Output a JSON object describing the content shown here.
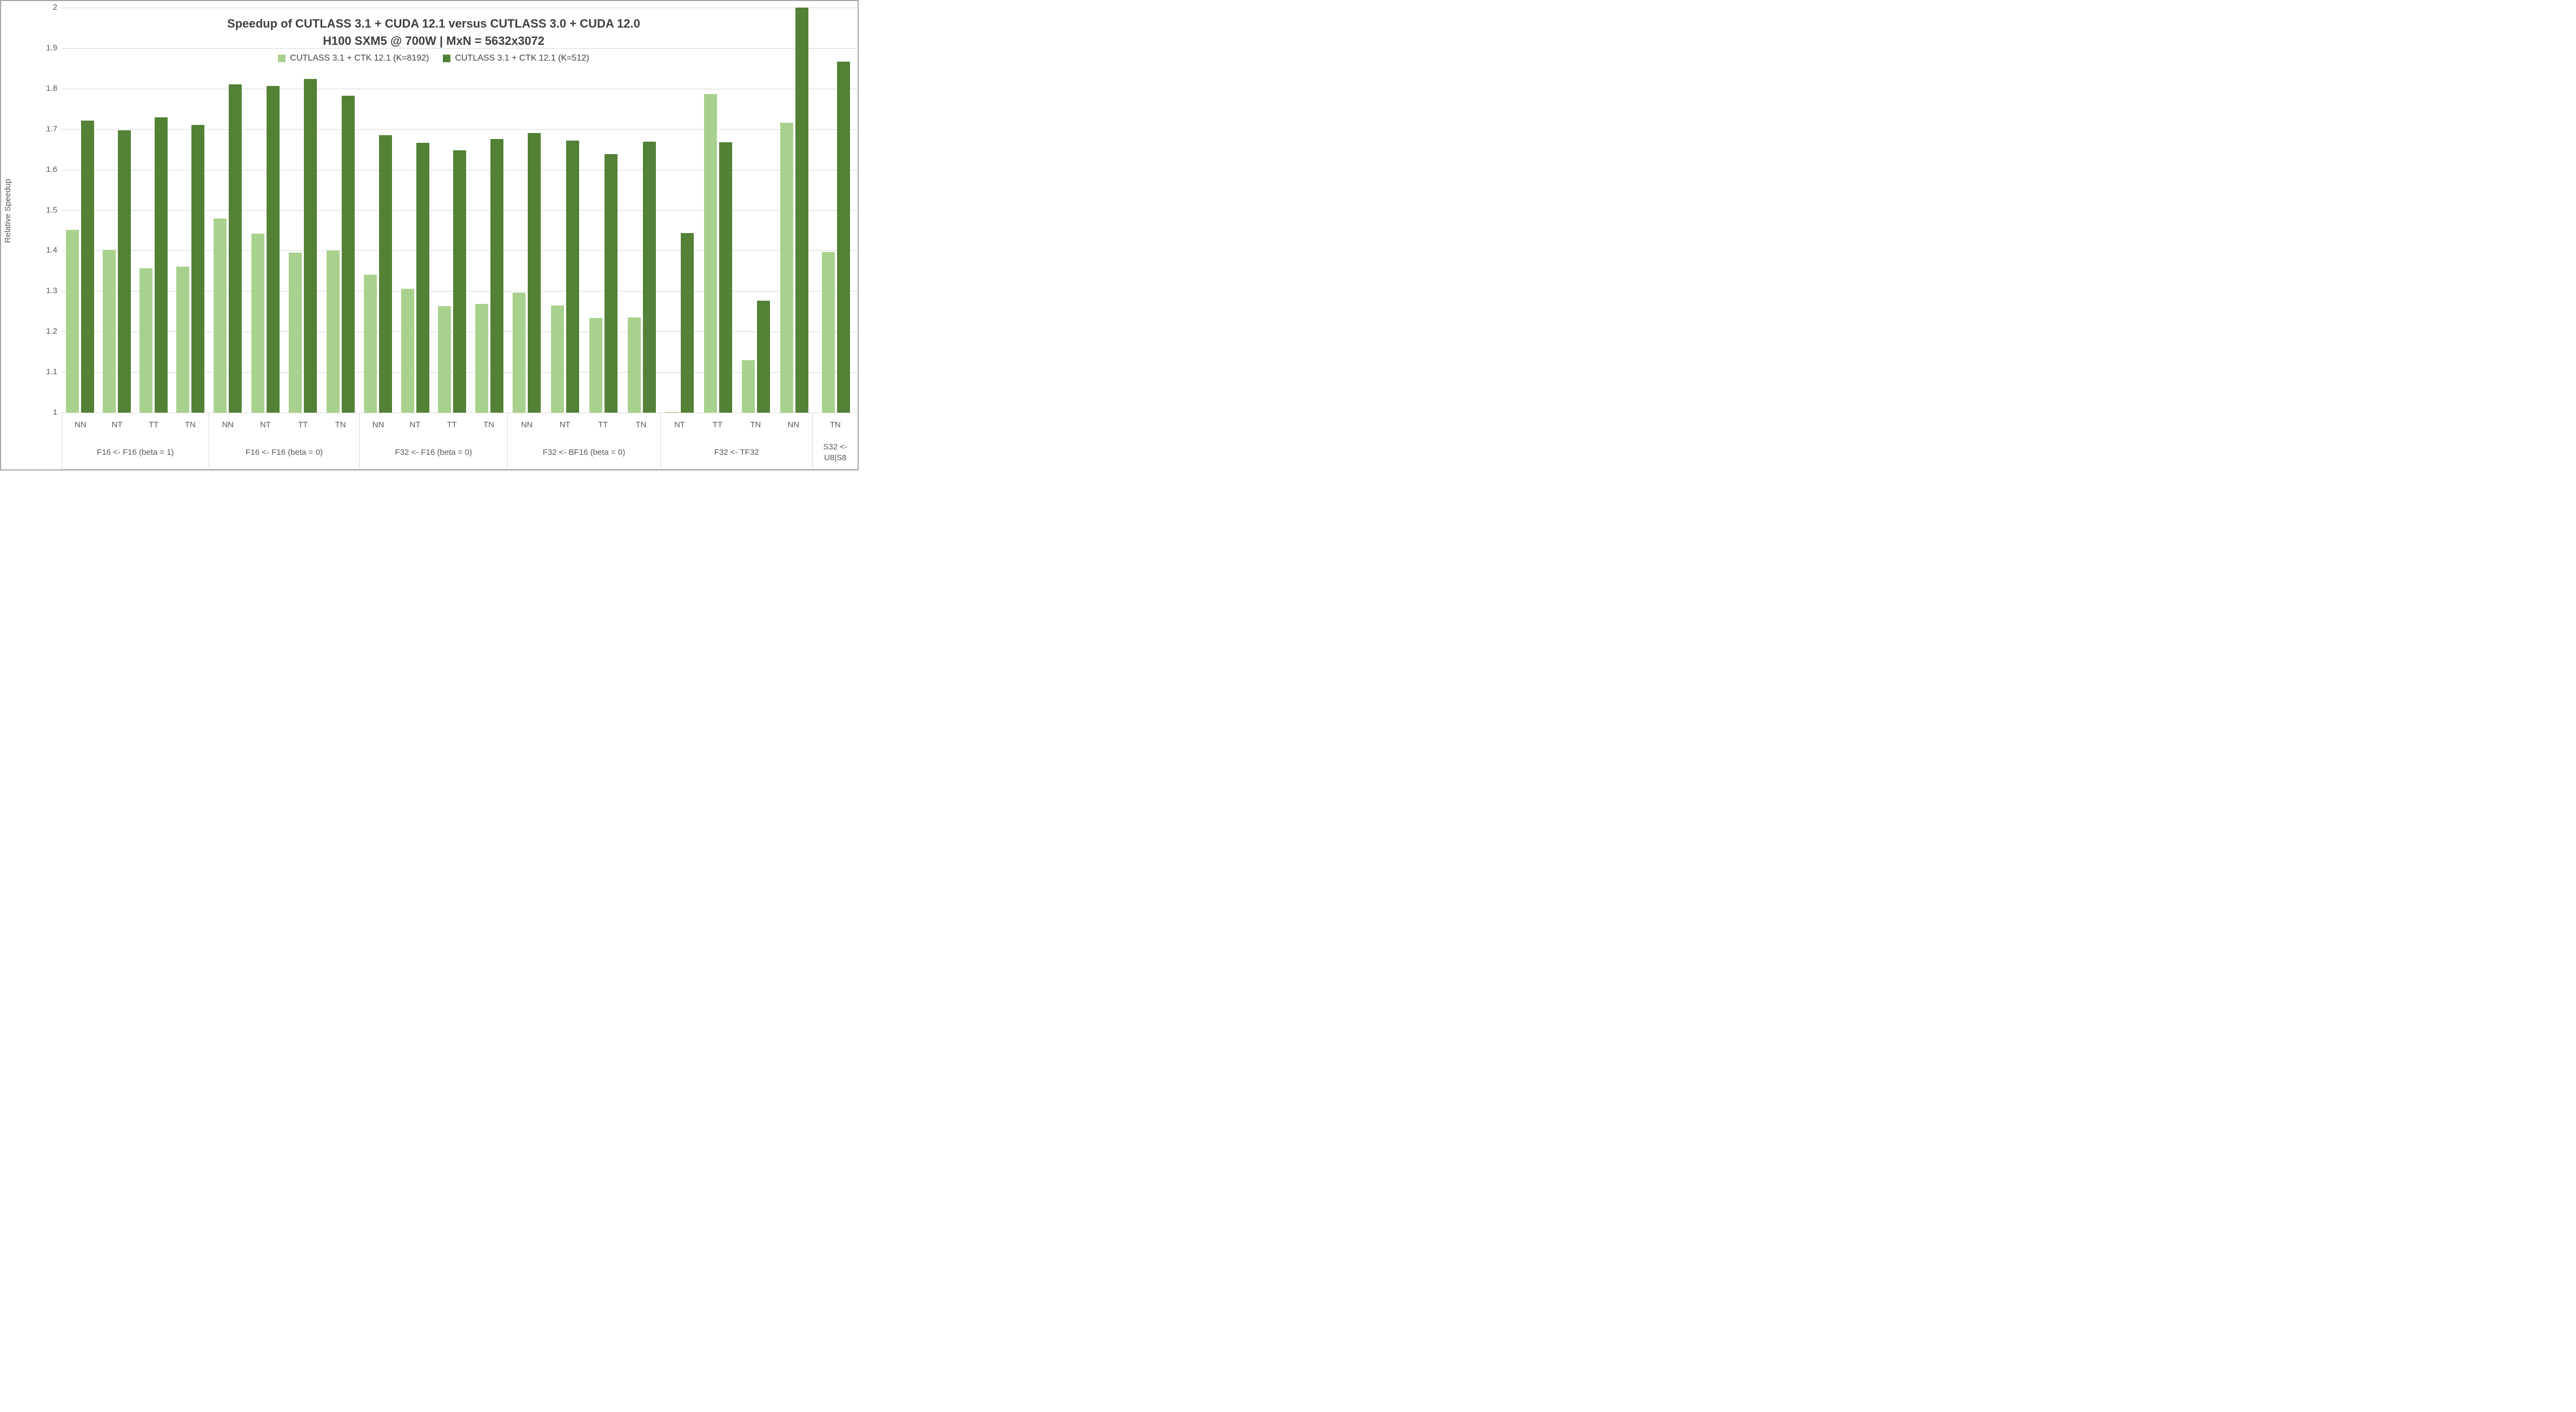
{
  "frame": {
    "background": "#ffffff",
    "border_color": "#a6a6a6"
  },
  "axis_style": {
    "text_color": "#595959",
    "title_color": "#404040",
    "gridline_color": "#d9d9d9"
  },
  "chart_data": {
    "type": "bar",
    "title": "Speedup of CUTLASS 3.1 + CUDA 12.1 versus CUTLASS 3.0 + CUDA 12.0",
    "subtitle": "H100 SXM5 @ 700W | MxN = 5632x3072",
    "ylabel": "Relative Speedup",
    "xlabel": "",
    "ylim": [
      1,
      2
    ],
    "grid": true,
    "legend_position": "top-center",
    "ytick_labels": [
      "1",
      "1.1",
      "1.2",
      "1.3",
      "1.4",
      "1.5",
      "1.6",
      "1.7",
      "1.8",
      "1.9",
      "2"
    ],
    "yticks": [
      1,
      1.1,
      1.2,
      1.3,
      1.4,
      1.5,
      1.6,
      1.7,
      1.8,
      1.9,
      2
    ],
    "series": [
      {
        "name": "CUTLASS 3.1 + CTK 12.1 (K=8192)",
        "color": "#A9D18E"
      },
      {
        "name": "CUTLASS 3.1 + CTK 12.1 (K=512)",
        "color": "#538135"
      }
    ],
    "groups": [
      {
        "label": "F16 <- F16 (beta = 1)",
        "categories": [
          "NN",
          "NT",
          "TT",
          "TN"
        ],
        "values_by_series": [
          [
            1.451,
            1.402,
            1.356,
            1.36
          ],
          [
            1.721,
            1.697,
            1.729,
            1.71
          ]
        ]
      },
      {
        "label": "F16 <- F16 (beta = 0)",
        "categories": [
          "NN",
          "NT",
          "TT",
          "TN"
        ],
        "values_by_series": [
          [
            1.479,
            1.442,
            1.395,
            1.4
          ],
          [
            1.81,
            1.806,
            1.824,
            1.783
          ]
        ]
      },
      {
        "label": "F32 <- F16 (beta = 0)",
        "categories": [
          "NN",
          "NT",
          "TT",
          "TN"
        ],
        "values_by_series": [
          [
            1.34,
            1.306,
            1.263,
            1.269
          ],
          [
            1.685,
            1.666,
            1.648,
            1.675
          ]
        ]
      },
      {
        "label": "F32 <- BF16 (beta = 0)",
        "categories": [
          "NN",
          "NT",
          "TT",
          "TN"
        ],
        "values_by_series": [
          [
            1.297,
            1.264,
            1.234,
            1.235
          ],
          [
            1.69,
            1.672,
            1.638,
            1.669
          ]
        ]
      },
      {
        "label": "F32 <- TF32",
        "categories": [
          "NT",
          "TT",
          "TN",
          "NN"
        ],
        "values_by_series": [
          [
            1.001,
            1.787,
            1.13,
            1.716
          ],
          [
            1.443,
            1.667,
            1.277,
            2.0
          ]
        ]
      },
      {
        "label": "S32 <- U8|S8",
        "categories": [
          "TN"
        ],
        "values_by_series": [
          [
            1.397
          ],
          [
            1.866
          ]
        ]
      }
    ]
  }
}
